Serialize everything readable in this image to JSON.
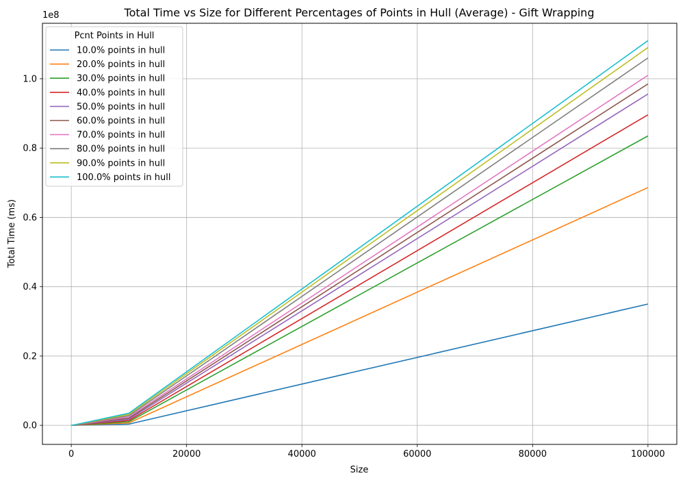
{
  "chart_data": {
    "type": "line",
    "title": "Total Time vs Size for Different Percentages of Points in Hull (Average) - Gift Wrapping",
    "xlabel": "Size",
    "ylabel": "Total Time (ms)",
    "y_offset_label": "1e8",
    "y_scale": 100000000,
    "xlim": [
      -5000,
      105000
    ],
    "ylim": [
      -5500000,
      116000000
    ],
    "x_ticks": [
      0,
      20000,
      40000,
      60000,
      80000,
      100000
    ],
    "x_tick_labels": [
      "0",
      "20000",
      "40000",
      "60000",
      "80000",
      "100000"
    ],
    "y_ticks": [
      0,
      20000000,
      40000000,
      60000000,
      80000000,
      100000000
    ],
    "y_tick_labels": [
      "0.0",
      "0.2",
      "0.4",
      "0.6",
      "0.8",
      "1.0"
    ],
    "grid": true,
    "legend_title": "Pcnt Points in Hull",
    "legend_placement": "top-left",
    "x": [
      10,
      100,
      1000,
      10000,
      100000
    ],
    "series": [
      {
        "name": "10.0% points in hull",
        "color": "#1f77b4",
        "values": [
          0,
          0,
          30000,
          350000,
          35000000
        ]
      },
      {
        "name": "20.0% points in hull",
        "color": "#ff7f0e",
        "values": [
          0,
          0,
          60000,
          700000,
          68600000
        ]
      },
      {
        "name": "30.0% points in hull",
        "color": "#2ca02c",
        "values": [
          0,
          0,
          90000,
          1050000,
          83500000
        ]
      },
      {
        "name": "40.0% points in hull",
        "color": "#d62728",
        "values": [
          0,
          0,
          120000,
          1400000,
          89600000
        ]
      },
      {
        "name": "50.0% points in hull",
        "color": "#9467bd",
        "values": [
          0,
          0,
          150000,
          1750000,
          95600000
        ]
      },
      {
        "name": "60.0% points in hull",
        "color": "#8c564b",
        "values": [
          0,
          0,
          180000,
          2100000,
          98500000
        ]
      },
      {
        "name": "70.0% points in hull",
        "color": "#e377c2",
        "values": [
          0,
          0,
          210000,
          2450000,
          101000000
        ]
      },
      {
        "name": "80.0% points in hull",
        "color": "#7f7f7f",
        "values": [
          0,
          0,
          240000,
          2800000,
          106000000
        ]
      },
      {
        "name": "90.0% points in hull",
        "color": "#bcbd22",
        "values": [
          0,
          0,
          270000,
          3150000,
          109000000
        ]
      },
      {
        "name": "100.0% points in hull",
        "color": "#17becf",
        "values": [
          0,
          0,
          300000,
          3500000,
          111000000
        ]
      }
    ]
  }
}
